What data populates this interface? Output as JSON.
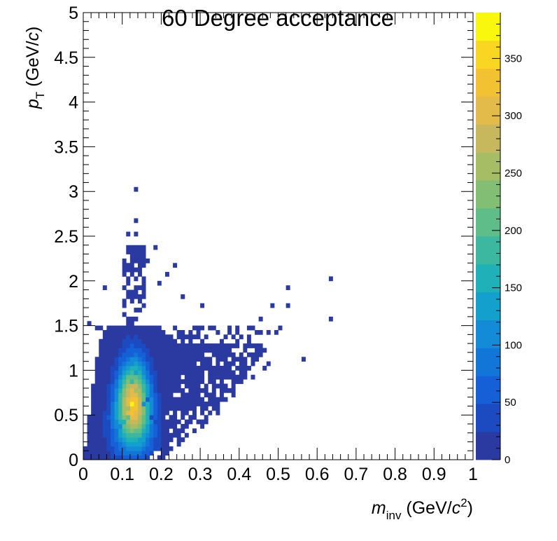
{
  "chart_data": {
    "type": "heatmap",
    "title": "60 Degree acceptance",
    "xlabel": {
      "symbol": "m",
      "sub": "inv",
      "unit_open": " (GeV/",
      "unit_var": "c",
      "unit_sup": "2",
      "unit_close": ")"
    },
    "ylabel": {
      "symbol": "p",
      "sub": "T",
      "unit_open": " (GeV/",
      "unit_var": "c",
      "unit_close": ")"
    },
    "xlim": [
      0,
      1
    ],
    "ylim": [
      0,
      5
    ],
    "zlim": [
      0,
      390
    ],
    "x_ticks": [
      "0",
      "0.1",
      "0.2",
      "0.3",
      "0.4",
      "0.5",
      "0.6",
      "0.7",
      "0.8",
      "0.9",
      "1"
    ],
    "y_ticks": [
      "0",
      "0.5",
      "1",
      "1.5",
      "2",
      "2.5",
      "3",
      "3.5",
      "4",
      "4.5",
      "5"
    ],
    "z_ticks": [
      "0",
      "50",
      "100",
      "150",
      "200",
      "250",
      "300",
      "350"
    ],
    "grid": false,
    "colorbar": "right",
    "colors": [
      "#2a3aa0",
      "#1c4ac0",
      "#1560d6",
      "#1276d8",
      "#138bd6",
      "#13a0cc",
      "#1fb0b8",
      "#3cb8a0",
      "#5ebd88",
      "#82be74",
      "#a6bd66",
      "#c7b85e",
      "#e3bb4a",
      "#f3c232",
      "#f8d622",
      "#f9f70e"
    ],
    "core_bins": [
      {
        "x": 0.125,
        "y": 0.625,
        "z": 385
      },
      {
        "x": 0.125,
        "y": 0.525,
        "z": 320
      },
      {
        "x": 0.125,
        "y": 0.725,
        "z": 300
      },
      {
        "x": 0.115,
        "y": 0.575,
        "z": 260
      },
      {
        "x": 0.135,
        "y": 0.775,
        "z": 250
      },
      {
        "x": 0.115,
        "y": 0.475,
        "z": 210
      },
      {
        "x": 0.125,
        "y": 0.875,
        "z": 190
      },
      {
        "x": 0.105,
        "y": 0.425,
        "z": 160
      },
      {
        "x": 0.135,
        "y": 0.975,
        "z": 140
      },
      {
        "x": 0.095,
        "y": 0.375,
        "z": 110
      },
      {
        "x": 0.125,
        "y": 1.075,
        "z": 100
      },
      {
        "x": 0.085,
        "y": 0.325,
        "z": 80
      },
      {
        "x": 0.125,
        "y": 1.175,
        "z": 70
      },
      {
        "x": 0.155,
        "y": 0.625,
        "z": 120
      },
      {
        "x": 0.165,
        "y": 0.675,
        "z": 70
      },
      {
        "x": 0.075,
        "y": 0.275,
        "z": 60
      },
      {
        "x": 0.065,
        "y": 0.225,
        "z": 45
      },
      {
        "x": 0.125,
        "y": 1.275,
        "z": 50
      },
      {
        "x": 0.175,
        "y": 0.475,
        "z": 40
      },
      {
        "x": 0.185,
        "y": 0.425,
        "z": 30
      }
    ],
    "outlier_bins": [
      {
        "x": 0.135,
        "y": 3.025,
        "z": 1
      },
      {
        "x": 0.135,
        "y": 2.675,
        "z": 1
      },
      {
        "x": 0.115,
        "y": 2.525,
        "z": 1
      },
      {
        "x": 0.135,
        "y": 2.525,
        "z": 1
      },
      {
        "x": 0.185,
        "y": 2.375,
        "z": 1
      },
      {
        "x": 0.235,
        "y": 2.175,
        "z": 1
      },
      {
        "x": 0.165,
        "y": 2.225,
        "z": 1
      },
      {
        "x": 0.215,
        "y": 2.075,
        "z": 1
      },
      {
        "x": 0.055,
        "y": 1.925,
        "z": 1
      },
      {
        "x": 0.195,
        "y": 1.975,
        "z": 1
      },
      {
        "x": 0.635,
        "y": 2.025,
        "z": 1
      },
      {
        "x": 0.525,
        "y": 1.925,
        "z": 1
      },
      {
        "x": 0.255,
        "y": 1.825,
        "z": 1
      },
      {
        "x": 0.305,
        "y": 1.725,
        "z": 1
      },
      {
        "x": 0.485,
        "y": 1.725,
        "z": 1
      },
      {
        "x": 0.525,
        "y": 1.725,
        "z": 1
      },
      {
        "x": 0.455,
        "y": 1.575,
        "z": 1
      },
      {
        "x": 0.635,
        "y": 1.575,
        "z": 1
      },
      {
        "x": 0.505,
        "y": 1.475,
        "z": 1
      },
      {
        "x": 0.475,
        "y": 1.425,
        "z": 1
      },
      {
        "x": 0.015,
        "y": 1.525,
        "z": 1
      },
      {
        "x": 0.035,
        "y": 1.475,
        "z": 1
      },
      {
        "x": 0.395,
        "y": 1.325,
        "z": 1
      },
      {
        "x": 0.375,
        "y": 1.225,
        "z": 1
      },
      {
        "x": 0.565,
        "y": 1.125,
        "z": 1
      },
      {
        "x": 0.475,
        "y": 1.075,
        "z": 1
      },
      {
        "x": 0.465,
        "y": 1.025,
        "z": 1
      },
      {
        "x": 0.415,
        "y": 0.975,
        "z": 1
      },
      {
        "x": 0.385,
        "y": 0.925,
        "z": 1
      },
      {
        "x": 0.435,
        "y": 0.925,
        "z": 1
      },
      {
        "x": 0.355,
        "y": 0.875,
        "z": 1
      },
      {
        "x": 0.325,
        "y": 0.725,
        "z": 1
      },
      {
        "x": 0.345,
        "y": 0.675,
        "z": 1
      },
      {
        "x": 0.365,
        "y": 0.825,
        "z": 1
      },
      {
        "x": 0.345,
        "y": 1.025,
        "z": 1
      },
      {
        "x": 0.315,
        "y": 1.275,
        "z": 1
      },
      {
        "x": 0.265,
        "y": 1.375,
        "z": 1
      },
      {
        "x": 0.285,
        "y": 1.475,
        "z": 1
      },
      {
        "x": 0.285,
        "y": 1.225,
        "z": 1
      }
    ]
  }
}
